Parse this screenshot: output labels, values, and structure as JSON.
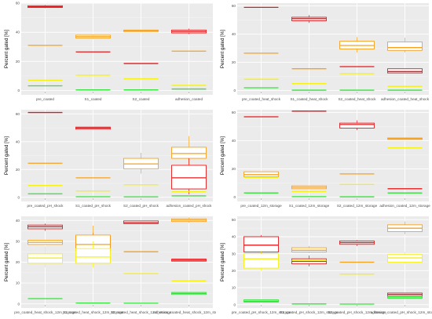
{
  "colors": {
    "red": "#e31a1c",
    "orange": "#f6a21e",
    "yellow": "#f6f10f",
    "green": "#33e23a"
  },
  "chart_data": [
    {
      "type": "boxplot",
      "ylabel": "Percent gated [%]",
      "ylim": [
        -3,
        60
      ],
      "yticks": [
        0,
        20,
        40,
        60
      ],
      "categories": [
        "pre_coated",
        "S1_coated",
        "S2_coated",
        "adhesion_coated"
      ],
      "groups": [
        {
          "boxes": [
            {
              "color": "red",
              "q1": 57.0,
              "median": 57.5,
              "q3": 58.2,
              "lo": 56.6,
              "hi": 58.8
            },
            {
              "color": "orange",
              "median": 31.0
            },
            {
              "color": "yellow",
              "median": 7.0
            },
            {
              "color": "green",
              "median": 3.2
            }
          ]
        },
        {
          "boxes": [
            {
              "color": "red",
              "median": 26.5
            },
            {
              "color": "orange",
              "q1": 36.0,
              "median": 37.0,
              "q3": 38.0,
              "lo": 35.5,
              "hi": 38.5
            },
            {
              "color": "yellow",
              "median": 10.5
            },
            {
              "color": "green",
              "median": 0.4
            }
          ]
        },
        {
          "boxes": [
            {
              "color": "red",
              "median": 18.5
            },
            {
              "color": "orange",
              "q1": 40.5,
              "median": 41.0,
              "q3": 41.5
            },
            {
              "color": "yellow",
              "median": 8.0
            },
            {
              "color": "green",
              "median": 0.4
            }
          ]
        },
        {
          "boxes": [
            {
              "color": "red",
              "q1": 39.5,
              "median": 40.5,
              "q3": 41.5,
              "lo": 38.8,
              "hi": 42.5
            },
            {
              "color": "orange",
              "median": 27.0
            },
            {
              "color": "yellow",
              "median": 3.5
            },
            {
              "color": "green",
              "median": 1.0
            }
          ]
        }
      ]
    },
    {
      "type": "boxplot",
      "ylabel": "Percent gated [%]",
      "ylim": [
        -3,
        62
      ],
      "yticks": [
        0,
        20,
        40,
        60
      ],
      "categories": [
        "pre_coated_heat_shock",
        "S1_coated_heat_shock",
        "S2_coated_heat_shock",
        "adhesion_coated_heat_shock"
      ],
      "groups": [
        {
          "boxes": [
            {
              "color": "red",
              "median": 59.0
            },
            {
              "color": "orange",
              "median": 26.5
            },
            {
              "color": "yellow",
              "median": 8.0
            },
            {
              "color": "green",
              "median": 2.0
            }
          ]
        },
        {
          "boxes": [
            {
              "color": "red",
              "q1": 49.5,
              "median": 51.0,
              "q3": 52.0,
              "lo": 48.0,
              "hi": 53.5
            },
            {
              "color": "orange",
              "median": 15.5
            },
            {
              "color": "yellow",
              "median": 5.0
            },
            {
              "color": "green",
              "median": 0.3
            }
          ]
        },
        {
          "boxes": [
            {
              "color": "orange",
              "q1": 29.5,
              "median": 32.0,
              "q3": 35.0,
              "lo": 27.0,
              "hi": 38.0
            },
            {
              "color": "red",
              "median": 17.0
            },
            {
              "color": "yellow",
              "median": 12.0
            },
            {
              "color": "green",
              "median": 0.3
            }
          ]
        },
        {
          "boxes": [
            {
              "color": "orange",
              "q1": 28.5,
              "median": 30.5,
              "q3": 34.5,
              "lo": 27.0,
              "hi": 37.5
            },
            {
              "color": "red",
              "q1": 12.5,
              "median": 13.5,
              "q3": 15.5
            },
            {
              "color": "yellow",
              "median": 3.0
            },
            {
              "color": "green",
              "median": 0.3
            }
          ]
        }
      ]
    },
    {
      "type": "boxplot",
      "ylabel": "Percent gated [%]",
      "ylim": [
        -3,
        63
      ],
      "yticks": [
        0,
        20,
        40,
        60
      ],
      "categories": [
        "pre_coated_pH_shock",
        "S1_coated_pH_shock",
        "S2_coated_pH_shock",
        "adhesion_coated_pH_shock"
      ],
      "groups": [
        {
          "boxes": [
            {
              "color": "red",
              "median": 61.0
            },
            {
              "color": "orange",
              "median": 24.5
            },
            {
              "color": "yellow",
              "median": 8.5
            },
            {
              "color": "green",
              "median": 2.5
            }
          ]
        },
        {
          "boxes": [
            {
              "color": "red",
              "q1": 49.0,
              "median": 49.8,
              "q3": 50.5
            },
            {
              "color": "orange",
              "median": 14.0
            },
            {
              "color": "yellow",
              "median": 4.5
            },
            {
              "color": "green",
              "median": 0.4
            }
          ]
        },
        {
          "boxes": [
            {
              "color": "orange",
              "q1": 20.5,
              "median": 24.0,
              "q3": 28.0,
              "lo": 17.0,
              "hi": 32.0
            },
            {
              "color": "yellow",
              "median": 9.0
            },
            {
              "color": "green",
              "median": 0.3
            }
          ]
        },
        {
          "boxes": [
            {
              "color": "orange",
              "q1": 28.0,
              "median": 31.5,
              "q3": 36.0,
              "lo": 24.0,
              "hi": 44.0
            },
            {
              "color": "red",
              "q1": 6.0,
              "median": 14.0,
              "q3": 23.0,
              "lo": 2.0,
              "hi": 28.0
            },
            {
              "color": "yellow",
              "median": 4.0
            },
            {
              "color": "green",
              "median": 1.0
            }
          ]
        }
      ]
    },
    {
      "type": "boxplot",
      "ylabel": "Percent gated [%]",
      "ylim": [
        -3,
        62
      ],
      "yticks": [
        0,
        20,
        40,
        60
      ],
      "categories": [
        "pre_coated_12m_storage",
        "S1_coated_12m_storage",
        "S2_coated_12m_storage",
        "adhesion_coated_12m_storage"
      ],
      "groups": [
        {
          "boxes": [
            {
              "color": "red",
              "median": 57.0
            },
            {
              "color": "orange",
              "q1": 14.5,
              "median": 16.0,
              "q3": 18.0
            },
            {
              "color": "yellow",
              "median": 14.0
            },
            {
              "color": "green",
              "median": 3.0
            }
          ]
        },
        {
          "boxes": [
            {
              "color": "red",
              "median": 61.0
            },
            {
              "color": "orange",
              "q1": 6.0,
              "median": 7.0,
              "q3": 8.0
            },
            {
              "color": "yellow",
              "median": 4.0
            },
            {
              "color": "green",
              "median": 0.4
            }
          ]
        },
        {
          "boxes": [
            {
              "color": "red",
              "q1": 49.0,
              "median": 51.5,
              "q3": 52.5,
              "lo": 47.5,
              "hi": 54.5
            },
            {
              "color": "orange",
              "median": 16.5
            },
            {
              "color": "yellow",
              "median": 9.0
            },
            {
              "color": "green",
              "median": 0.3
            }
          ]
        },
        {
          "boxes": [
            {
              "color": "orange",
              "q1": 41.0,
              "median": 41.5,
              "q3": 42.0
            },
            {
              "color": "yellow",
              "median": 35.0
            },
            {
              "color": "red",
              "median": 6.0
            },
            {
              "color": "green",
              "median": 3.0
            }
          ]
        }
      ]
    },
    {
      "type": "boxplot",
      "ylabel": "Percent gated [%]",
      "ylim": [
        -2,
        42
      ],
      "yticks": [
        0,
        10,
        20,
        30,
        40
      ],
      "categories": [
        "pre_coated_heat_shock_12m_storage",
        "S1_coated_heat_shock_12m_storage",
        "S2_coated_heat_shock_12m_storage",
        "adhesion_coated_heat_shock_12m_storage"
      ],
      "groups": [
        {
          "boxes": [
            {
              "color": "red",
              "q1": 36.0,
              "median": 37.0,
              "q3": 37.8,
              "lo": 35.0,
              "hi": 38.5
            },
            {
              "color": "orange",
              "q1": 28.5,
              "median": 29.5,
              "q3": 30.5
            },
            {
              "color": "yellow",
              "q1": 19.5,
              "median": 22.0,
              "q3": 24.0,
              "lo": 17.5,
              "hi": 27.5
            },
            {
              "color": "green",
              "median": 2.5
            }
          ]
        },
        {
          "boxes": [
            {
              "color": "red",
              "q1": 25.5,
              "median": 28.5,
              "q3": 32.5,
              "lo": 22.0,
              "hi": 34.0
            },
            {
              "color": "orange",
              "q1": 26.0,
              "median": 28.5,
              "q3": 33.0,
              "lo": 24.0,
              "hi": 37.5
            },
            {
              "color": "yellow",
              "q1": 19.5,
              "median": 22.5,
              "q3": 26.5,
              "lo": 17.5,
              "hi": 30.0
            },
            {
              "color": "green",
              "median": 0.4
            }
          ]
        },
        {
          "boxes": [
            {
              "color": "red",
              "q1": 38.5,
              "median": 39.0,
              "q3": 39.8
            },
            {
              "color": "orange",
              "median": 25.0
            },
            {
              "color": "yellow",
              "median": 14.5
            },
            {
              "color": "green",
              "median": 0.3
            }
          ]
        },
        {
          "boxes": [
            {
              "color": "orange",
              "q1": 39.5,
              "median": 40.2,
              "q3": 40.8,
              "lo": 39.0,
              "hi": 41.5
            },
            {
              "color": "red",
              "q1": 20.5,
              "median": 21.0,
              "q3": 21.5
            },
            {
              "color": "yellow",
              "median": 11.0
            },
            {
              "color": "green",
              "q1": 4.5,
              "median": 5.0,
              "q3": 5.5
            }
          ]
        }
      ]
    },
    {
      "type": "boxplot",
      "ylabel": "Percent gated [%]",
      "ylim": [
        -2,
        52
      ],
      "yticks": [
        0,
        10,
        20,
        30,
        40,
        50
      ],
      "categories": [
        "pre_coated_pH_shock_12m_storage",
        "S1_coated_pH_shock_12m_storage",
        "S2_coated_pH_shock_12m_storage",
        "adhesion_coated_pH_shock_12m_storage"
      ],
      "groups": [
        {
          "boxes": [
            {
              "color": "red",
              "q1": 31.0,
              "median": 35.0,
              "q3": 40.0,
              "lo": 28.0,
              "hi": 41.0
            },
            {
              "color": "yellow",
              "q1": 21.5,
              "median": 27.0,
              "q3": 30.0,
              "lo": 20.0,
              "hi": 31.5
            },
            {
              "color": "green",
              "q1": 1.5,
              "median": 2.0,
              "q3": 2.8
            }
          ]
        },
        {
          "boxes": [
            {
              "color": "orange",
              "q1": 31.0,
              "median": 32.0,
              "q3": 33.5,
              "lo": 30.5,
              "hi": 34.5
            },
            {
              "color": "red",
              "q1": 24.0,
              "median": 25.5,
              "q3": 27.0,
              "lo": 22.5,
              "hi": 29.0
            },
            {
              "color": "yellow",
              "median": 26.0
            },
            {
              "color": "green",
              "median": 0.4
            }
          ]
        },
        {
          "boxes": [
            {
              "color": "red",
              "q1": 35.5,
              "median": 36.5,
              "q3": 37.5,
              "lo": 34.5,
              "hi": 38.0
            },
            {
              "color": "orange",
              "median": 25.0
            },
            {
              "color": "yellow",
              "median": 18.0
            },
            {
              "color": "green",
              "median": 0.3
            }
          ]
        },
        {
          "boxes": [
            {
              "color": "orange",
              "q1": 43.0,
              "median": 45.0,
              "q3": 47.0,
              "lo": 41.5,
              "hi": 49.0
            },
            {
              "color": "yellow",
              "q1": 25.0,
              "median": 27.5,
              "q3": 29.5,
              "lo": 24.0,
              "hi": 31.0
            },
            {
              "color": "red",
              "q1": 5.0,
              "median": 6.0,
              "q3": 6.8
            },
            {
              "color": "green",
              "q1": 3.8,
              "median": 4.5,
              "q3": 5.0
            }
          ]
        }
      ]
    }
  ]
}
